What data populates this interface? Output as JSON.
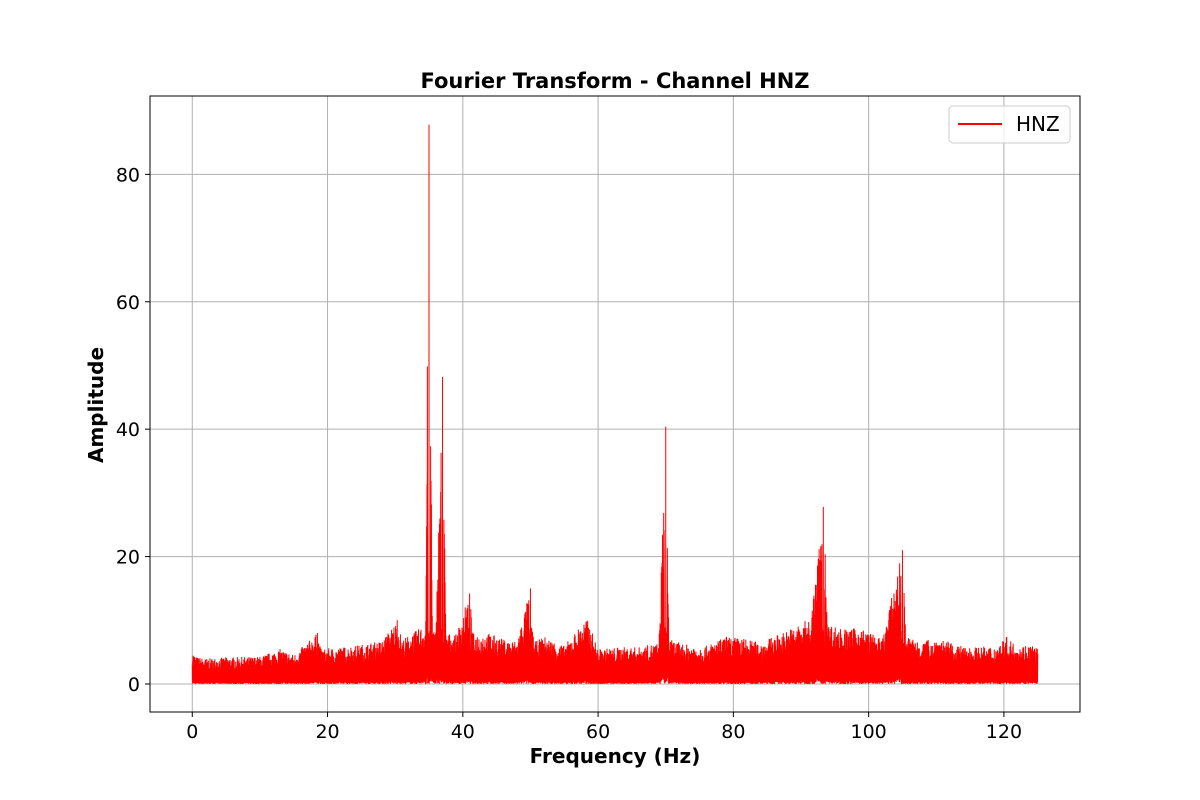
{
  "chart_data": {
    "type": "line",
    "title": "Fourier Transform - Channel HNZ",
    "xlabel": "Frequency (Hz)",
    "ylabel": "Amplitude",
    "xlim": [
      -6.25,
      131.25
    ],
    "ylim": [
      -4.4,
      92.3
    ],
    "xticks": [
      0,
      20,
      40,
      60,
      80,
      100,
      120
    ],
    "yticks": [
      0,
      20,
      40,
      60,
      80
    ],
    "grid": true,
    "legend_position": "top-right",
    "series": [
      {
        "name": "HNZ",
        "color": "#ff0000",
        "x_range": [
          0,
          125
        ],
        "envelope": [
          [
            0,
            5.3
          ],
          [
            0.5,
            4.3
          ],
          [
            2,
            4.0
          ],
          [
            5,
            4.2
          ],
          [
            10,
            4.3
          ],
          [
            13,
            5.5
          ],
          [
            15,
            4.6
          ],
          [
            18.5,
            8.0
          ],
          [
            19,
            5.5
          ],
          [
            22,
            5.8
          ],
          [
            25,
            6.2
          ],
          [
            28,
            6.8
          ],
          [
            30.3,
            10.0
          ],
          [
            31,
            7.0
          ],
          [
            33,
            8.3
          ],
          [
            34.5,
            9.5
          ],
          [
            35,
            87.8
          ],
          [
            35.5,
            9.5
          ],
          [
            36,
            8.0
          ],
          [
            37,
            48.2
          ],
          [
            37.5,
            8.0
          ],
          [
            39,
            7.8
          ],
          [
            41,
            14.2
          ],
          [
            41.5,
            8.0
          ],
          [
            44,
            8.0
          ],
          [
            46,
            7.0
          ],
          [
            48,
            6.8
          ],
          [
            50,
            15.0
          ],
          [
            50.5,
            6.5
          ],
          [
            52,
            7.5
          ],
          [
            55,
            6.0
          ],
          [
            58.3,
            10.4
          ],
          [
            59,
            8.5
          ],
          [
            60,
            5.5
          ],
          [
            63,
            5.8
          ],
          [
            66,
            5.8
          ],
          [
            69,
            6.5
          ],
          [
            70,
            40.4
          ],
          [
            70.5,
            7.0
          ],
          [
            73,
            6.2
          ],
          [
            76,
            6.0
          ],
          [
            79,
            7.5
          ],
          [
            81.5,
            7.2
          ],
          [
            84,
            6.5
          ],
          [
            87,
            8.0
          ],
          [
            90,
            9.5
          ],
          [
            91.5,
            10.5
          ],
          [
            93.3,
            27.8
          ],
          [
            94,
            9.5
          ],
          [
            97,
            8.5
          ],
          [
            98.5,
            9.0
          ],
          [
            100,
            8.2
          ],
          [
            102,
            7.0
          ],
          [
            105,
            21.0
          ],
          [
            105.5,
            7.5
          ],
          [
            108,
            6.8
          ],
          [
            110.5,
            7.3
          ],
          [
            113,
            6.0
          ],
          [
            116,
            5.8
          ],
          [
            119,
            6.0
          ],
          [
            120.3,
            7.5
          ],
          [
            122,
            6.0
          ],
          [
            124,
            6.3
          ],
          [
            125,
            5.8
          ]
        ]
      }
    ]
  }
}
